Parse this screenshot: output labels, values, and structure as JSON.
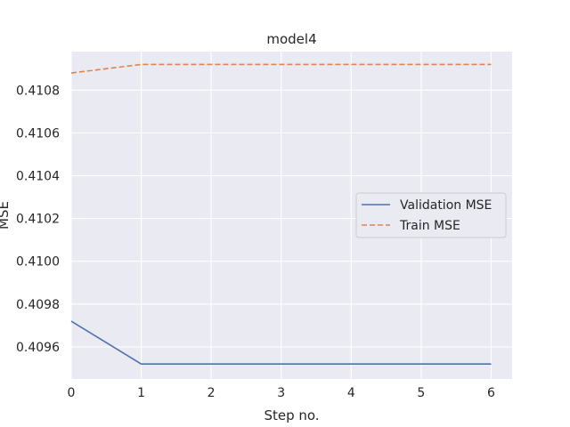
{
  "chart_data": {
    "type": "line",
    "title": "model4",
    "xlabel": "Step no.",
    "ylabel": "MSE",
    "x": [
      0,
      1,
      2,
      3,
      4,
      5,
      6
    ],
    "xticks": [
      "0",
      "1",
      "2",
      "3",
      "4",
      "5",
      "6"
    ],
    "yticks": [
      "0.4096",
      "0.4098",
      "0.4100",
      "0.4102",
      "0.4104",
      "0.4106",
      "0.4108"
    ],
    "xlim": [
      0,
      6.3
    ],
    "ylim": [
      0.40945,
      0.41098
    ],
    "grid": true,
    "legend_position": "center-right",
    "series": [
      {
        "name": "Validation MSE",
        "style": "solid",
        "color": "#4c72b0",
        "values": [
          0.40972,
          0.40952,
          0.40952,
          0.40952,
          0.40952,
          0.40952,
          0.40952
        ]
      },
      {
        "name": "Train MSE",
        "style": "dashed",
        "color": "#dd8452",
        "values": [
          0.41088,
          0.41092,
          0.41092,
          0.41092,
          0.41092,
          0.41092,
          0.41092
        ]
      }
    ],
    "colors": {
      "plot_background": "#eaeaf2",
      "grid": "#ffffff",
      "text": "#262626"
    }
  }
}
